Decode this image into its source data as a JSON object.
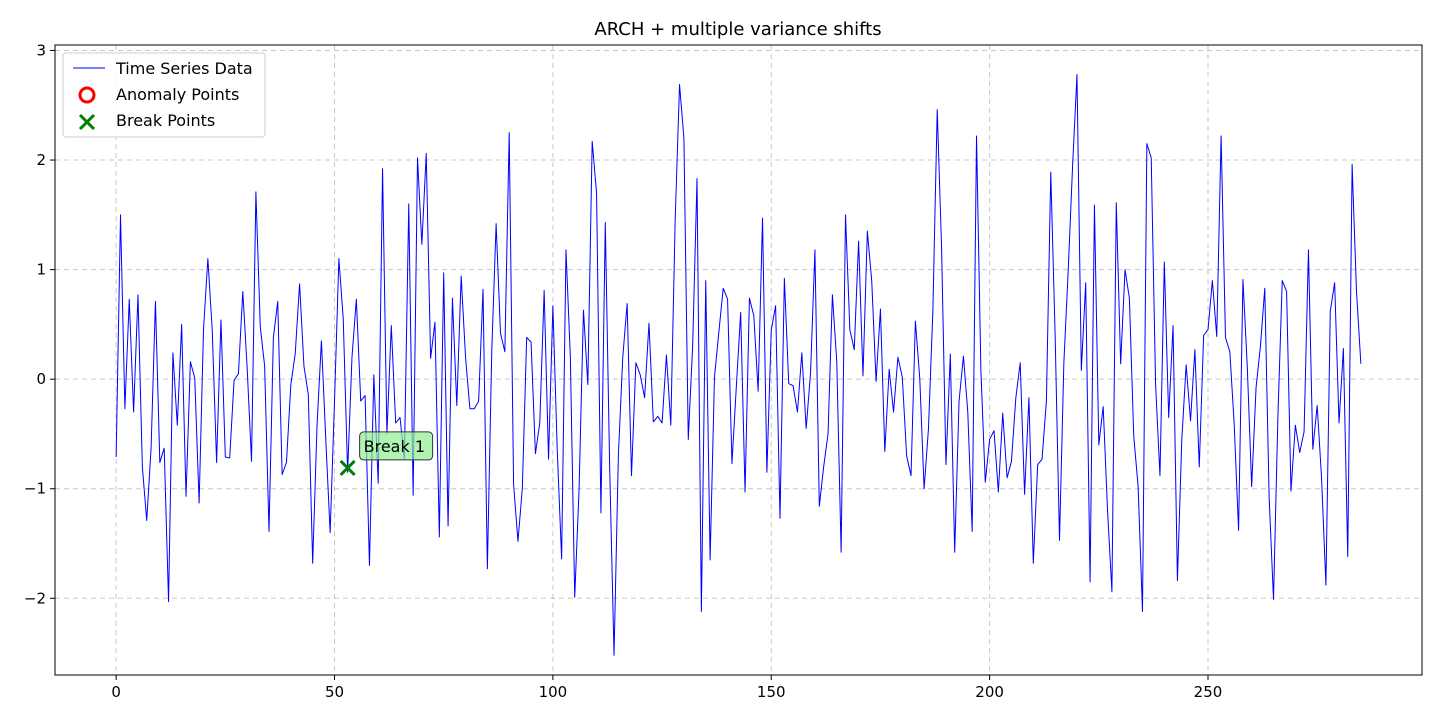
{
  "chart_data": {
    "type": "line",
    "title": "ARCH + multiple variance shifts",
    "xlabel": "",
    "ylabel": "",
    "xlim": [
      -14,
      299
    ],
    "ylim": [
      -2.7,
      3.05
    ],
    "x_ticks": [
      0,
      50,
      100,
      150,
      200,
      250
    ],
    "y_ticks": [
      -2,
      -1,
      0,
      1,
      2,
      3
    ],
    "y_tick_labels": [
      "−2",
      "−1",
      "0",
      "1",
      "2",
      "3"
    ],
    "grid": true,
    "legend_position": "top-left",
    "series": [
      {
        "name": "Time Series Data",
        "color": "#0000ff",
        "values": [
          -0.71,
          1.5,
          -0.27,
          0.73,
          -0.3,
          0.77,
          -0.8,
          -1.29,
          -0.63,
          0.71,
          -0.76,
          -0.63,
          -2.03,
          0.24,
          -0.42,
          0.5,
          -1.07,
          0.16,
          0.01,
          -1.13,
          0.45,
          1.1,
          0.45,
          -0.76,
          0.54,
          -0.71,
          -0.72,
          -0.01,
          0.05,
          0.8,
          0.1,
          -0.75,
          1.71,
          0.48,
          0.12,
          -1.39,
          0.38,
          0.71,
          -0.87,
          -0.76,
          -0.05,
          0.23,
          0.87,
          0.12,
          -0.14,
          -1.68,
          -0.42,
          0.35,
          -0.55,
          -1.4,
          -0.2,
          1.1,
          0.55,
          -0.85,
          0.2,
          0.73,
          -0.2,
          -0.15,
          -1.7,
          0.04,
          -0.95,
          1.92,
          -0.5,
          0.49,
          -0.4,
          -0.35,
          -0.73,
          1.6,
          -1.06,
          2.02,
          1.23,
          2.06,
          0.19,
          0.52,
          -1.44,
          0.97,
          -1.34,
          0.74,
          -0.24,
          0.94,
          0.2,
          -0.27,
          -0.27,
          -0.2,
          0.82,
          -1.73,
          0.25,
          1.42,
          0.42,
          0.25,
          2.25,
          -0.96,
          -1.48,
          -1.0,
          0.38,
          0.34,
          -0.68,
          -0.4,
          0.81,
          -0.73,
          0.67,
          -0.65,
          -1.64,
          1.18,
          0.2,
          -1.99,
          -1.0,
          0.63,
          -0.05,
          2.17,
          1.7,
          -1.22,
          1.43,
          -0.8,
          -2.52,
          -0.69,
          0.2,
          0.69,
          -0.88,
          0.15,
          0.04,
          -0.17,
          0.51,
          -0.39,
          -0.34,
          -0.4,
          0.22,
          -0.42,
          1.45,
          2.69,
          2.2,
          -0.55,
          0.3,
          1.83,
          -2.12,
          0.9,
          -1.65,
          0.02,
          0.43,
          0.83,
          0.73,
          -0.77,
          -0.07,
          0.61,
          -1.03,
          0.74,
          0.58,
          -0.11,
          1.47,
          -0.85,
          0.45,
          0.67,
          -1.27,
          0.92,
          -0.04,
          -0.06,
          -0.3,
          0.24,
          -0.45,
          0.06,
          1.18,
          -1.16,
          -0.8,
          -0.5,
          0.77,
          0.16,
          -1.58,
          1.5,
          0.45,
          0.27,
          1.26,
          0.03,
          1.35,
          0.9,
          -0.02,
          0.64,
          -0.66,
          0.09,
          -0.3,
          0.2,
          0.02,
          -0.7,
          -0.88,
          0.53,
          0.01,
          -1.0,
          -0.45,
          0.62,
          2.46,
          1.2,
          -0.78,
          0.23,
          -1.58,
          -0.2,
          0.21,
          -0.3,
          -1.39,
          2.22,
          0.08,
          -0.94,
          -0.55,
          -0.47,
          -1.03,
          -0.31,
          -0.9,
          -0.75,
          -0.17,
          0.15,
          -1.05,
          -0.17,
          -1.68,
          -0.78,
          -0.73,
          -0.2,
          1.89,
          0.4,
          -1.47,
          0.15,
          1.0,
          1.95,
          2.78,
          0.08,
          0.88,
          -1.85,
          1.59,
          -0.6,
          -0.25,
          -1.2,
          -1.94,
          1.61,
          0.14,
          1.0,
          0.74,
          -0.52,
          -0.98,
          -2.12,
          2.15,
          2.02,
          -0.05,
          -0.88,
          1.07,
          -0.35,
          0.49,
          -1.84,
          -0.55,
          0.13,
          -0.38,
          0.27,
          -0.8,
          0.4,
          0.45,
          0.9,
          0.39,
          2.22,
          0.38,
          0.25,
          -0.41,
          -1.38,
          0.91,
          0.11,
          -0.98,
          -0.08,
          0.3,
          0.83,
          -1.08,
          -2.01,
          -0.35,
          0.9,
          0.8,
          -1.02,
          -0.42,
          -0.67,
          -0.48,
          1.18,
          -0.64,
          -0.24,
          -0.9,
          -1.88,
          0.62,
          0.88,
          -0.4,
          0.28,
          -1.62,
          1.96,
          0.8,
          0.14
        ]
      }
    ],
    "anomaly_points": {
      "name": "Anomaly Points",
      "color": "#ff0000",
      "points": []
    },
    "break_points": {
      "name": "Break Points",
      "color": "#008000",
      "points": [
        {
          "x": 53,
          "y": -0.81,
          "label": "Break 1"
        }
      ]
    },
    "annotation_box_color": "#90ee90"
  }
}
